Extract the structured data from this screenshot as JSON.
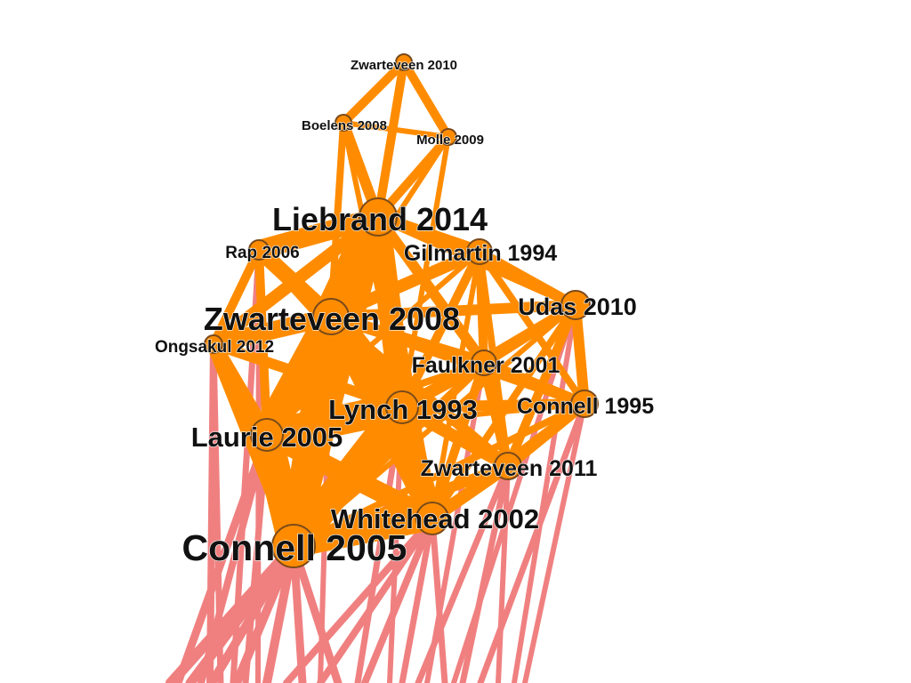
{
  "colors": {
    "background": "#ffffff",
    "node_fill": "#ff8c00",
    "node_stroke": "#7a4a1a",
    "edge_internal": "#ff8c00",
    "edge_external": "#f08080",
    "label": "#111111"
  },
  "graph": {
    "nodes": [
      {
        "id": "zwarteveen2010",
        "label": "Zwarteveen 2010"
      },
      {
        "id": "boelens2008",
        "label": "Boelens 2008"
      },
      {
        "id": "molle2009",
        "label": "Molle 2009"
      },
      {
        "id": "liebrand2014",
        "label": "Liebrand 2014"
      },
      {
        "id": "rap2006",
        "label": "Rap 2006"
      },
      {
        "id": "gilmartin1994",
        "label": "Gilmartin 1994"
      },
      {
        "id": "udas2010",
        "label": "Udas 2010"
      },
      {
        "id": "zwarteveen2008",
        "label": "Zwarteveen 2008"
      },
      {
        "id": "ongsakul2012",
        "label": "Ongsakul 2012"
      },
      {
        "id": "faulkner2001",
        "label": "Faulkner 2001"
      },
      {
        "id": "lynch1993",
        "label": "Lynch 1993"
      },
      {
        "id": "connell1995",
        "label": "Connell 1995"
      },
      {
        "id": "laurie2005",
        "label": "Laurie 2005"
      },
      {
        "id": "zwarteveen2011",
        "label": "Zwarteveen 2011"
      },
      {
        "id": "whitehead2002",
        "label": "Whitehead 2002"
      },
      {
        "id": "connell2005",
        "label": "Connell 2005"
      }
    ]
  }
}
